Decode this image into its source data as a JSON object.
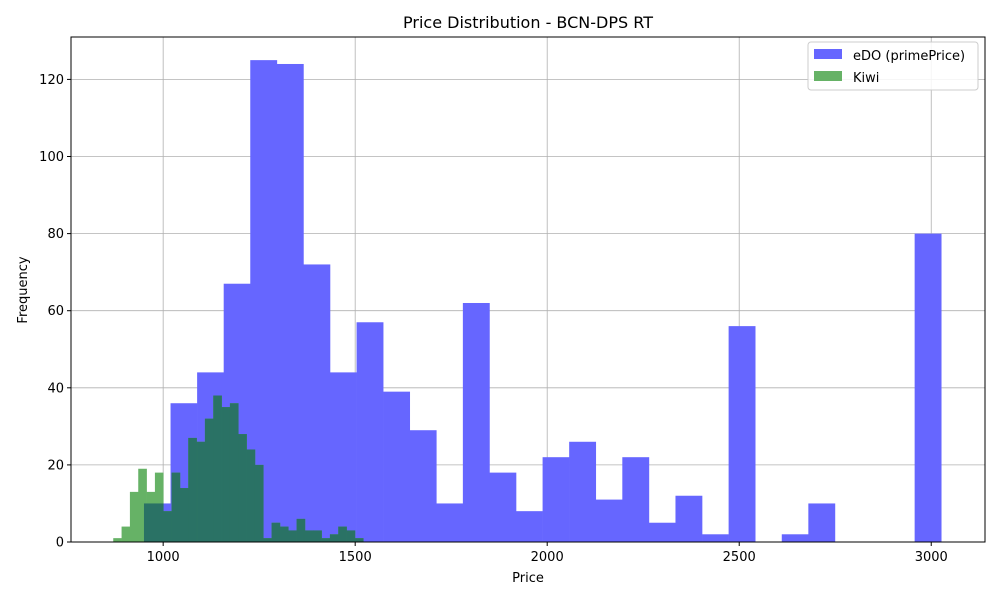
{
  "chart_data": {
    "type": "bar",
    "title": "Price Distribution - BCN-DPS RT",
    "xlabel": "Price",
    "ylabel": "Frequency",
    "xlim": [
      760,
      3140
    ],
    "ylim": [
      0,
      131
    ],
    "xticks": [
      1000,
      1500,
      2000,
      2500,
      3000
    ],
    "yticks": [
      0,
      20,
      40,
      60,
      80,
      100,
      120
    ],
    "grid": true,
    "legend_position": "top-right",
    "series": [
      {
        "name": "eDO (primePrice)",
        "color": "#6666ff",
        "bin_start": 950,
        "bin_width": 69.2,
        "counts": [
          10,
          36,
          44,
          67,
          125,
          124,
          72,
          44,
          57,
          39,
          29,
          10,
          62,
          18,
          8,
          22,
          26,
          11,
          22,
          5,
          12,
          2,
          56,
          0,
          2,
          10,
          0,
          0,
          0,
          80
        ]
      },
      {
        "name": "Kiwi",
        "color": "#66b266",
        "bin_start": 870,
        "bin_width": 21.7,
        "counts": [
          1,
          4,
          13,
          19,
          13,
          18,
          8,
          18,
          14,
          27,
          26,
          32,
          38,
          35,
          36,
          28,
          24,
          20,
          1,
          5,
          4,
          3,
          6,
          3,
          3,
          1,
          2,
          4,
          3,
          1
        ]
      }
    ]
  }
}
